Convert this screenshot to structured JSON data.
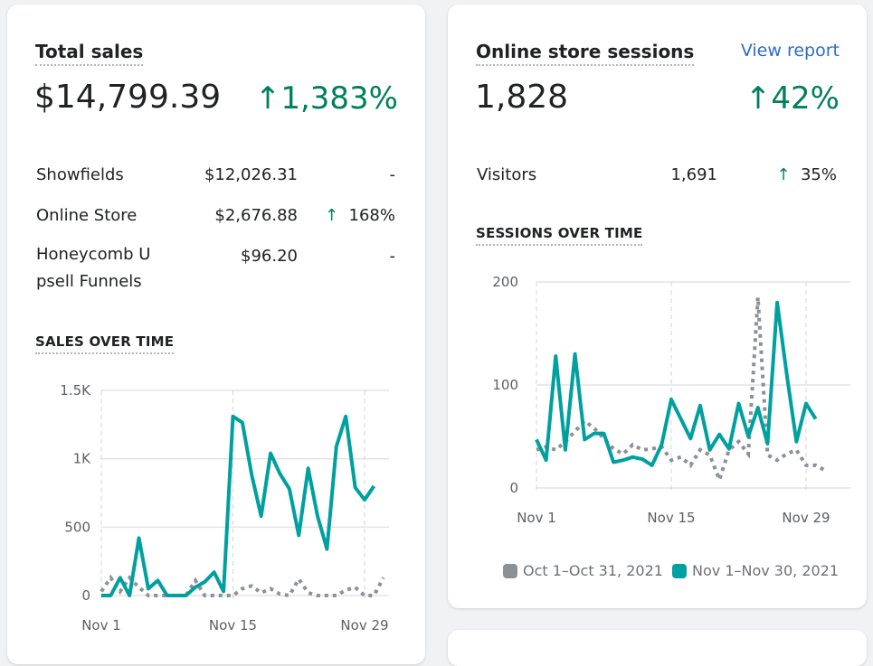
{
  "sales": {
    "title": "Total sales",
    "total": "$14,799.39",
    "change": "1,383%",
    "rows": [
      {
        "name": "Showfields",
        "value": "$12,026.31",
        "change": "-"
      },
      {
        "name": "Online Store",
        "value": "$2,676.88",
        "change": "168%"
      },
      {
        "name": "Honeycomb U",
        "name2": "psell Funnels",
        "value": "$96.20",
        "change": "-"
      }
    ],
    "chart_title": "SALES OVER TIME"
  },
  "sessions": {
    "title": "Online store sessions",
    "view_report": "View report",
    "total": "1,828",
    "change": "42%",
    "visitors": {
      "name": "Visitors",
      "value": "1,691",
      "change": "35%"
    },
    "chart_title": "SESSIONS OVER TIME"
  },
  "legend": {
    "previous": "Oct 1–Oct 31, 2021",
    "current": "Nov 1–Nov 30, 2021"
  },
  "colors": {
    "current": "#00a0a0",
    "previous": "#8c9196",
    "green": "#008060"
  },
  "chart_data": [
    {
      "type": "line",
      "title": "SALES OVER TIME",
      "ylim": [
        0,
        1500
      ],
      "yticks": [
        "0",
        "500",
        "1K",
        "1.5K"
      ],
      "ytick_values": [
        0,
        500,
        1000,
        1500
      ],
      "xticks": [
        "Nov 1",
        "Nov 15",
        "Nov 29"
      ],
      "xtick_days": [
        1,
        15,
        29
      ],
      "series": [
        {
          "name": "Nov 1–Nov 30, 2021",
          "values": [
            0,
            0,
            130,
            0,
            420,
            50,
            110,
            0,
            0,
            0,
            60,
            100,
            170,
            30,
            1310,
            1265,
            880,
            580,
            1040,
            890,
            780,
            440,
            930,
            580,
            340,
            1090,
            1310,
            790,
            700,
            800
          ]
        },
        {
          "name": "Oct 1–Oct 31, 2021",
          "values": [
            30,
            130,
            30,
            130,
            60,
            0,
            0,
            0,
            0,
            0,
            110,
            0,
            0,
            0,
            0,
            50,
            70,
            20,
            50,
            10,
            0,
            120,
            20,
            0,
            0,
            0,
            40,
            60,
            0,
            0,
            130
          ]
        }
      ]
    },
    {
      "type": "line",
      "title": "SESSIONS OVER TIME",
      "ylim": [
        0,
        200
      ],
      "yticks": [
        "0",
        "100",
        "200"
      ],
      "ytick_values": [
        0,
        100,
        200
      ],
      "xticks": [
        "Nov 1",
        "Nov 15",
        "Nov 29"
      ],
      "xtick_days": [
        1,
        15,
        29
      ],
      "series": [
        {
          "name": "Nov 1–Nov 30, 2021",
          "values": [
            47,
            27,
            128,
            37,
            130,
            47,
            53,
            53,
            25,
            27,
            30,
            28,
            22,
            42,
            86,
            67,
            48,
            80,
            37,
            52,
            38,
            82,
            50,
            78,
            43,
            180,
            110,
            45,
            82,
            67
          ]
        },
        {
          "name": "Oct 1–Oct 31, 2021",
          "values": [
            37,
            40,
            37,
            45,
            55,
            65,
            58,
            48,
            38,
            33,
            42,
            37,
            38,
            40,
            27,
            30,
            22,
            37,
            32,
            8,
            37,
            45,
            33,
            185,
            32,
            27,
            33,
            37,
            22,
            22,
            17
          ]
        }
      ]
    }
  ]
}
